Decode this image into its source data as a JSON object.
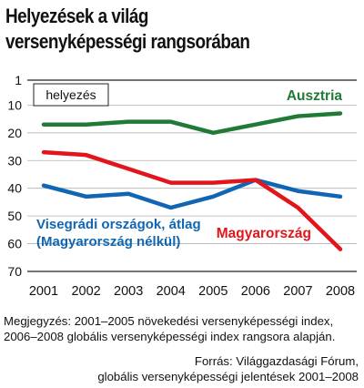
{
  "title": {
    "line1": "Helyezések a világ",
    "line2": "versenyképességi rangsorában"
  },
  "chart_data": {
    "type": "line",
    "x": [
      2001,
      2002,
      2003,
      2004,
      2005,
      2006,
      2007,
      2008
    ],
    "y_ticks": [
      1,
      10,
      20,
      30,
      40,
      50,
      60,
      70
    ],
    "ylim": [
      70,
      1
    ],
    "y_inverted": true,
    "grid": true,
    "ylabel_box": "helyezés",
    "series": [
      {
        "name": "Ausztria",
        "color": "#1f7a35",
        "values": [
          17,
          17,
          16,
          16,
          20,
          17,
          14,
          13
        ]
      },
      {
        "name": "Magyarország",
        "color": "#e3141b",
        "values": [
          27,
          28,
          33,
          38,
          38,
          37,
          47,
          62
        ]
      },
      {
        "name_line1": "Visegrádi országok, átlag",
        "name_line2": "(Magyarország nélkül)",
        "color": "#1066b3",
        "values": [
          39,
          43,
          42,
          47,
          43,
          37,
          41,
          43
        ]
      }
    ]
  },
  "note": {
    "line1": "Megjegyzés: 2001–2005 növekedési versenyképességi index,",
    "line2": "2006–2008 globális versenyképességi index rangsora alapján."
  },
  "source": {
    "line1": "Forrás: Világgazdasági Fórum,",
    "line2": "globális versenyképességi jelentések 2001–2008"
  },
  "colors": {
    "grid": "#b0b0b0",
    "axis": "#222222"
  }
}
